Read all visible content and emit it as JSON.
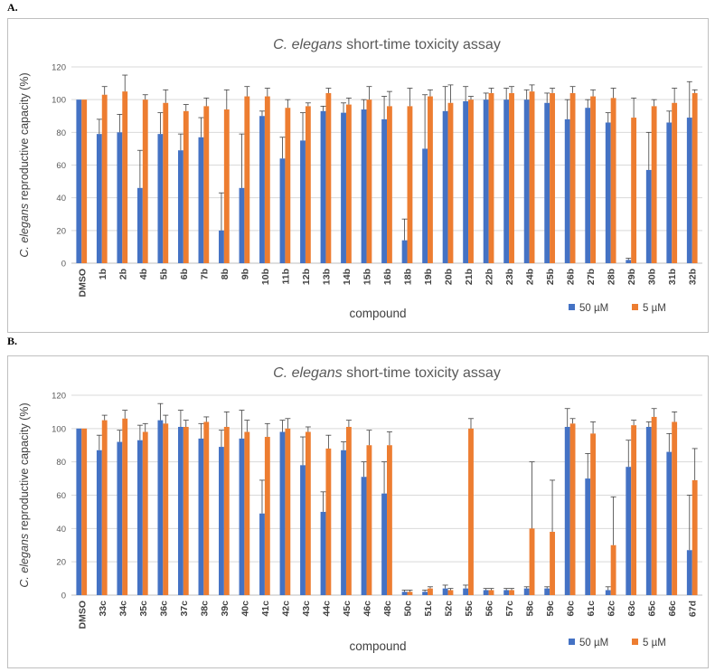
{
  "panels": [
    {
      "label": "A.",
      "chart_data": {
        "type": "bar",
        "title_italic": "C. elegans",
        "title_rest": " short-time toxicity assay",
        "ylabel_italic": "C. elegans",
        "ylabel_rest": " reproductive capacity (%)",
        "xlabel": "compound",
        "ylim": [
          0,
          120
        ],
        "yticks": [
          0,
          20,
          40,
          60,
          80,
          100,
          120
        ],
        "grid": true,
        "legend_position": "bottom-right",
        "categories": [
          "DMSO",
          "1b",
          "2b",
          "4b",
          "5b",
          "6b",
          "7b",
          "8b",
          "9b",
          "10b",
          "11b",
          "12b",
          "13b",
          "14b",
          "15b",
          "16b",
          "18b",
          "19b",
          "20b",
          "21b",
          "22b",
          "23b",
          "24b",
          "25b",
          "26b",
          "27b",
          "28b",
          "29b",
          "30b",
          "31b",
          "32b"
        ],
        "series": [
          {
            "name": "50 µM",
            "color": "#4472c4",
            "values": [
              100,
              79,
              80,
              46,
              79,
              69,
              77,
              20,
              46,
              90,
              64,
              75,
              93,
              92,
              94,
              88,
              14,
              70,
              93,
              99,
              100,
              100,
              100,
              98,
              88,
              95,
              86,
              2,
              57,
              86,
              89
            ],
            "errors": [
              0,
              9,
              11,
              23,
              13,
              10,
              12,
              23,
              33,
              3,
              13,
              17,
              3,
              6,
              6,
              14,
              13,
              33,
              15,
              9,
              4,
              7,
              6,
              6,
              12,
              5,
              6,
              1,
              23,
              7,
              22
            ]
          },
          {
            "name": "5 µM",
            "color": "#ed7d31",
            "values": [
              100,
              103,
              105,
              100,
              98,
              93,
              96,
              94,
              102,
              102,
              95,
              96,
              104,
              97,
              100,
              96,
              96,
              102,
              98,
              100,
              104,
              104,
              105,
              104,
              104,
              102,
              101,
              89,
              96,
              98,
              104
            ],
            "errors": [
              0,
              5,
              10,
              3,
              8,
              4,
              5,
              12,
              6,
              5,
              5,
              2,
              3,
              4,
              8,
              9,
              11,
              4,
              11,
              2,
              3,
              4,
              4,
              3,
              4,
              4,
              6,
              12,
              4,
              9,
              2
            ]
          }
        ]
      }
    },
    {
      "label": "B.",
      "chart_data": {
        "type": "bar",
        "title_italic": "C. elegans",
        "title_rest": " short-time toxicity assay",
        "ylabel_italic": "C. elegans",
        "ylabel_rest": " reproductive capacity (%)",
        "xlabel": "compound",
        "ylim": [
          0,
          120
        ],
        "yticks": [
          0,
          20,
          40,
          60,
          80,
          100,
          120
        ],
        "grid": true,
        "legend_position": "bottom-right",
        "categories": [
          "DMSO",
          "33c",
          "34c",
          "35c",
          "36c",
          "37c",
          "38c",
          "39c",
          "40c",
          "41c",
          "42c",
          "43c",
          "44c",
          "45c",
          "46c",
          "48c",
          "50c",
          "51c",
          "52c",
          "55c",
          "56c",
          "57c",
          "58c",
          "59c",
          "60c",
          "61c",
          "62c",
          "63c",
          "65c",
          "66c",
          "67d"
        ],
        "series": [
          {
            "name": "50 µM",
            "color": "#4472c4",
            "values": [
              100,
              87,
              92,
              93,
              105,
              101,
              94,
              89,
              94,
              49,
              98,
              78,
              50,
              87,
              71,
              61,
              2,
              2,
              4,
              4,
              3,
              3,
              4,
              4,
              101,
              70,
              3,
              77,
              101,
              86,
              27
            ],
            "errors": [
              0,
              9,
              7,
              9,
              10,
              10,
              9,
              10,
              17,
              20,
              7,
              17,
              12,
              5,
              9,
              19,
              1,
              1,
              2,
              2,
              1,
              1,
              1,
              1,
              11,
              15,
              2,
              16,
              3,
              11,
              33
            ]
          },
          {
            "name": "5 µM",
            "color": "#ed7d31",
            "values": [
              100,
              105,
              106,
              98,
              103,
              101,
              104,
              101,
              98,
              95,
              100,
              98,
              88,
              101,
              90,
              90,
              2,
              4,
              3,
              100,
              3,
              3,
              40,
              38,
              103,
              97,
              30,
              102,
              107,
              104,
              69
            ],
            "errors": [
              0,
              3,
              5,
              5,
              5,
              4,
              3,
              9,
              7,
              8,
              6,
              3,
              8,
              4,
              9,
              8,
              1,
              1,
              1,
              6,
              1,
              1,
              40,
              31,
              3,
              7,
              29,
              3,
              5,
              6,
              19
            ]
          }
        ]
      }
    }
  ]
}
